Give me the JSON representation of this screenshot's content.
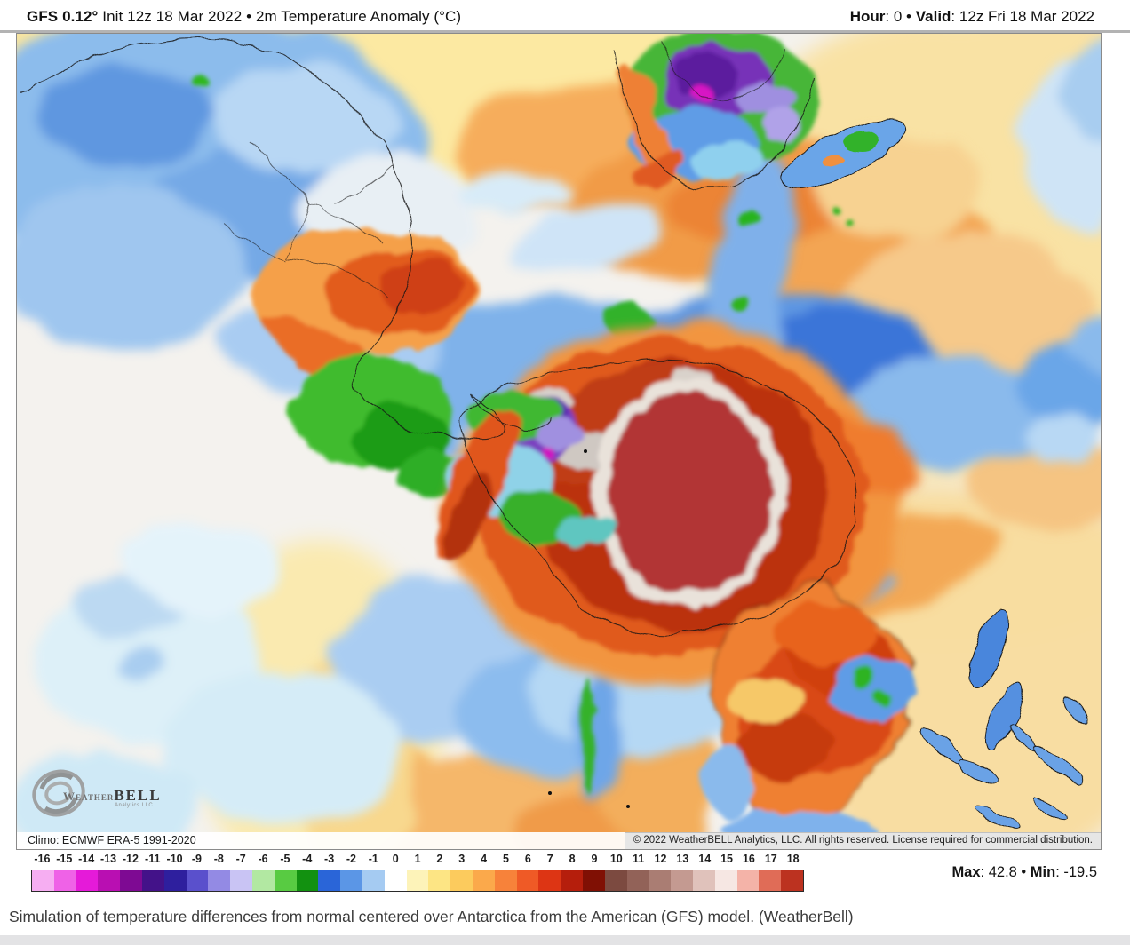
{
  "header": {
    "left_bold": "GFS 0.12°",
    "left_rest": " Init 12z 18 Mar 2022  •  2m Temperature Anomaly (°C)",
    "hour_label": "Hour",
    "hour_value": ": 0 ",
    "bullet": "• ",
    "valid_label": "Valid",
    "valid_value": ": 12z Fri 18 Mar 2022"
  },
  "map": {
    "climo": "Climo: ECMWF ERA-5 1991-2020",
    "copyright": "© 2022 WeatherBELL Analytics, LLC. All rights reserved. License required for commercial distribution.",
    "logo": {
      "weather": "Weather",
      "bell": "BELL",
      "sub": "Analytics LLC"
    }
  },
  "colorbar": {
    "ticks": [
      "-16",
      "-15",
      "-14",
      "-13",
      "-12",
      "-11",
      "-10",
      "-9",
      "-8",
      "-7",
      "-6",
      "-5",
      "-4",
      "-3",
      "-2",
      "-1",
      "0",
      "1",
      "2",
      "3",
      "4",
      "5",
      "6",
      "7",
      "8",
      "9",
      "10",
      "11",
      "12",
      "13",
      "14",
      "15",
      "16",
      "17",
      "18"
    ],
    "colors": [
      "#f6aef2",
      "#ef62e7",
      "#e51ad9",
      "#b90fb2",
      "#7e0a93",
      "#431289",
      "#2e1f9e",
      "#5a50cc",
      "#938ae4",
      "#c9c4f4",
      "#b2e8a2",
      "#58cb42",
      "#129110",
      "#2a65d8",
      "#5b96e6",
      "#a5cbf2",
      "#ffffff",
      "#fdf3b9",
      "#fde584",
      "#fccb5d",
      "#fba94b",
      "#f7823a",
      "#ef5a26",
      "#dd3514",
      "#b51e0c",
      "#801004",
      "#7c4a40",
      "#926258",
      "#aa7d73",
      "#c49a91",
      "#e0c2bb",
      "#f6e7e3",
      "#f4b3a8",
      "#e06c57",
      "#bc3220"
    ],
    "max_label": "Max",
    "max_value": ": 42.8 ",
    "bullet": "• ",
    "min_label": "Min",
    "min_value": ": -19.5"
  },
  "caption": "Simulation of temperature differences from normal centered over Antarctica from the American (GFS) model. (WeatherBell)"
}
